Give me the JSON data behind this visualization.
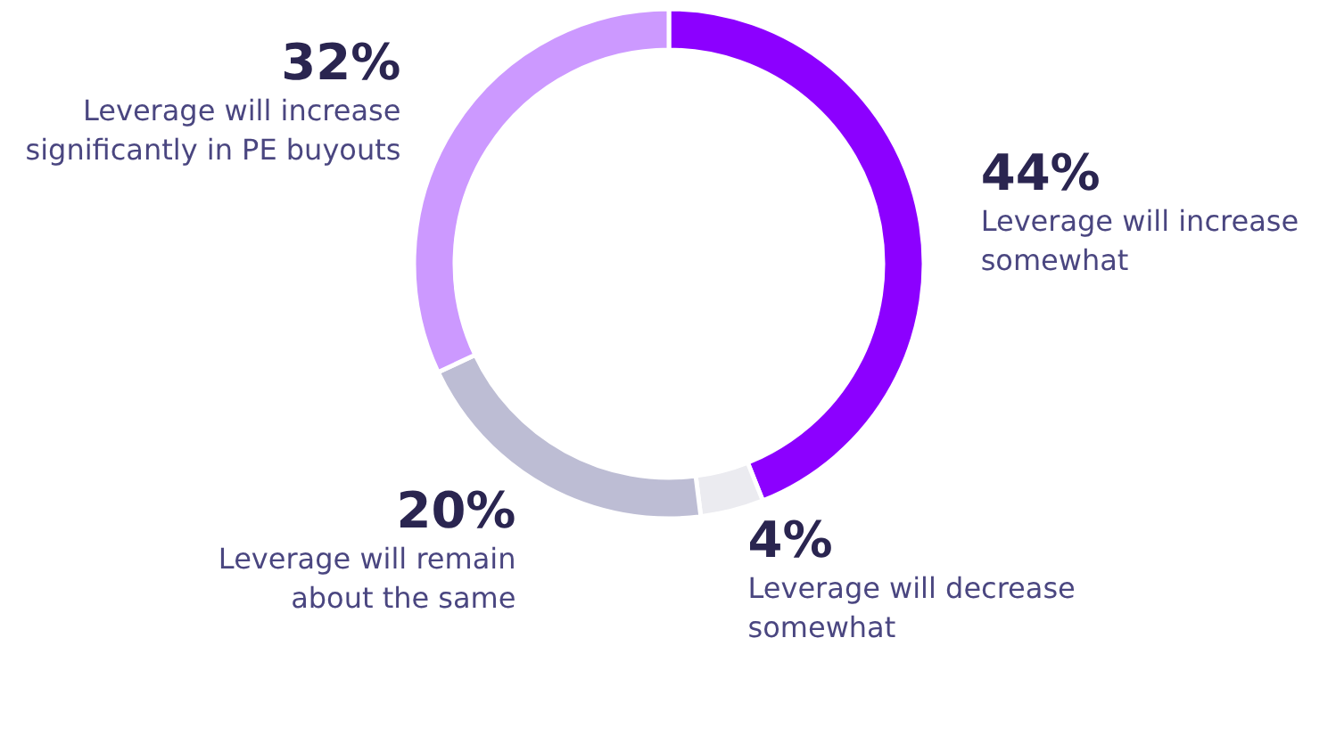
{
  "chart_data": {
    "type": "donut",
    "categories": [
      "Leverage will increase somewhat",
      "Leverage will decrease somewhat",
      "Leverage will remain about the same",
      "Leverage will increase significantly in PE buyouts"
    ],
    "values": [
      44,
      4,
      20,
      32
    ],
    "colors": [
      "#8c00ff",
      "#ebebf0",
      "#bdbdd4",
      "#cc99ff"
    ],
    "value_labels": [
      "44%",
      "4%",
      "20%",
      "32%"
    ]
  }
}
